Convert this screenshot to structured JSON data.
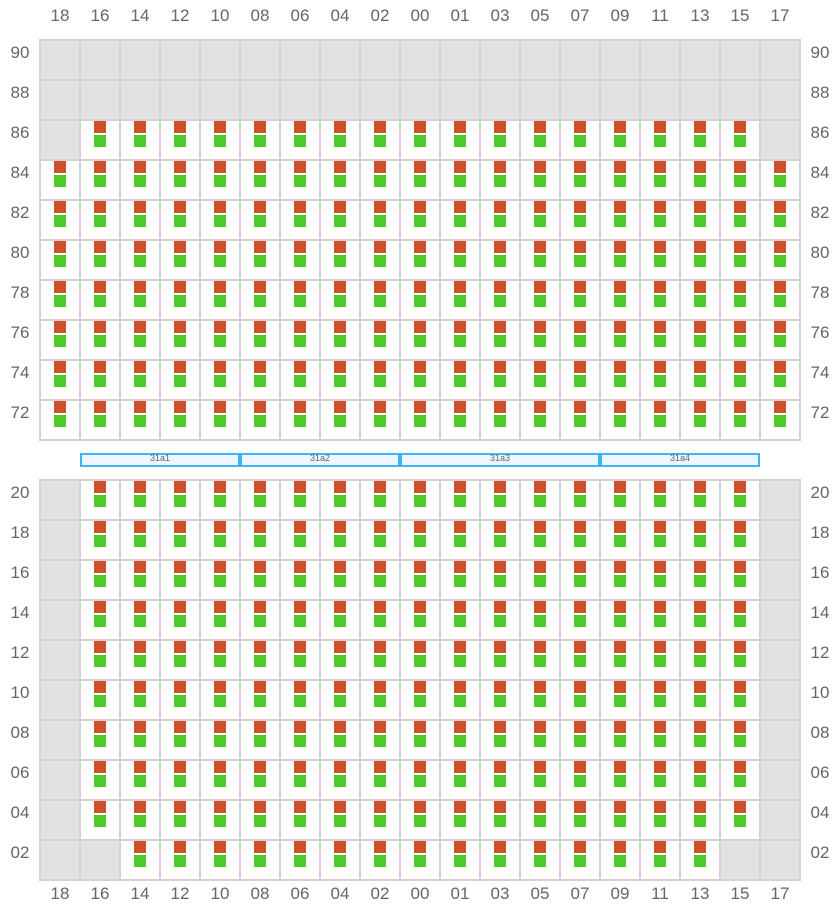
{
  "columns": [
    "18",
    "16",
    "14",
    "12",
    "10",
    "08",
    "06",
    "04",
    "02",
    "00",
    "01",
    "03",
    "05",
    "07",
    "09",
    "11",
    "13",
    "15",
    "17"
  ],
  "colors": {
    "top_indicator": "#cc5229",
    "bottom_indicator": "#4fcc2a",
    "empty_cell": "#e2e2e4",
    "segment_border": "#3bb8f0"
  },
  "top_block": {
    "rows": [
      {
        "label": "90",
        "pattern": "eeeeeeeeeeeeeeeeeee"
      },
      {
        "label": "88",
        "pattern": "eeeeeeeeeeeeeeeeeee"
      },
      {
        "label": "86",
        "pattern": "essssssssssssssssse"
      },
      {
        "label": "84",
        "pattern": "sssssssssssssssssss"
      },
      {
        "label": "82",
        "pattern": "sssssssssssssssssss"
      },
      {
        "label": "80",
        "pattern": "sssssssssssssssssss"
      },
      {
        "label": "78",
        "pattern": "sssssssssssssssssss"
      },
      {
        "label": "76",
        "pattern": "sssssssssssssssssss"
      },
      {
        "label": "74",
        "pattern": "sssssssssssssssssss"
      },
      {
        "label": "72",
        "pattern": "sssssssssssssssssss"
      }
    ]
  },
  "segments": [
    {
      "label": "31a1",
      "from_col": 1,
      "to_col": 5
    },
    {
      "label": "31a2",
      "from_col": 5,
      "to_col": 9
    },
    {
      "label": "31a3",
      "from_col": 9,
      "to_col": 14
    },
    {
      "label": "31a4",
      "from_col": 14,
      "to_col": 18
    }
  ],
  "bottom_block": {
    "rows": [
      {
        "label": "20",
        "pattern": "essssssssssssssssse"
      },
      {
        "label": "18",
        "pattern": "essssssssssssssssse"
      },
      {
        "label": "16",
        "pattern": "essssssssssssssssse"
      },
      {
        "label": "14",
        "pattern": "essssssssssssssssse"
      },
      {
        "label": "12",
        "pattern": "essssssssssssssssse"
      },
      {
        "label": "10",
        "pattern": "essssssssssssssssse"
      },
      {
        "label": "08",
        "pattern": "essssssssssssssssse"
      },
      {
        "label": "06",
        "pattern": "essssssssssssssssse"
      },
      {
        "label": "04",
        "pattern": "essssssssssssssssse"
      },
      {
        "label": "02",
        "pattern": "eesssssssssssssssee"
      }
    ]
  }
}
